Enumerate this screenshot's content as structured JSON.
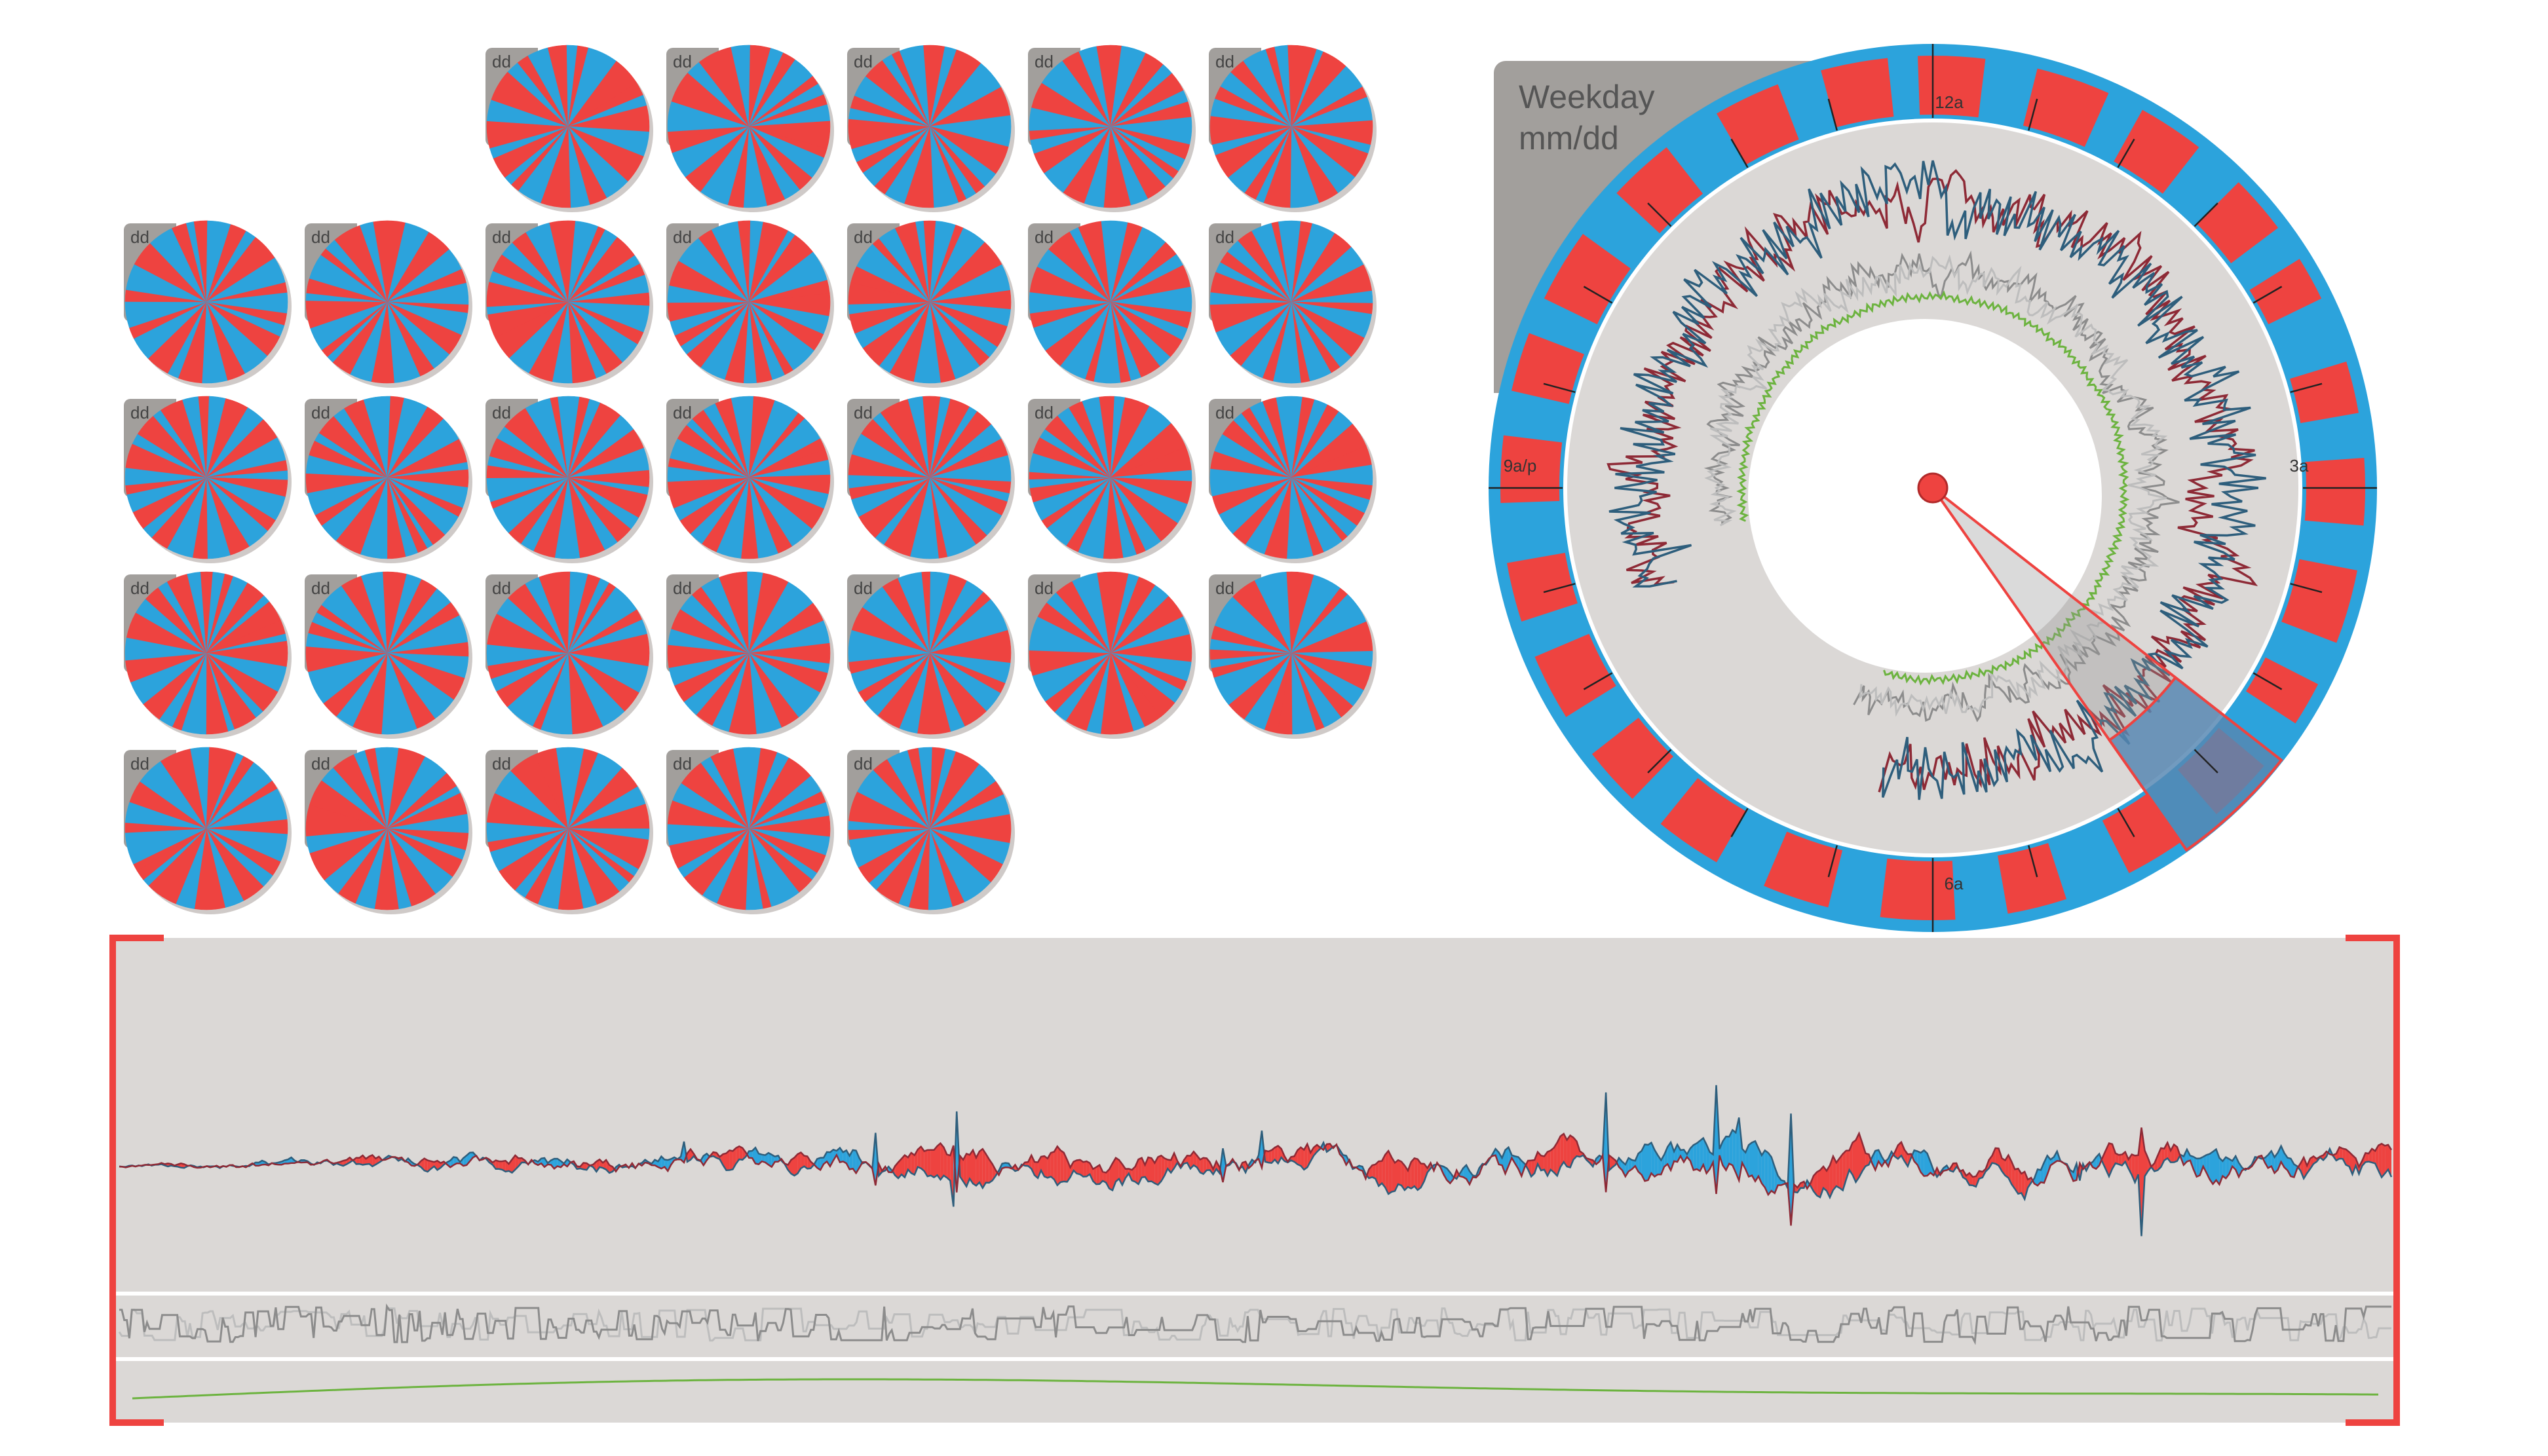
{
  "colors": {
    "red": "#EE4340",
    "blue": "#2CA3DC",
    "tab": "#A29F9C",
    "panel": "#DBD8D6",
    "grey_line": "#8C8C8C",
    "light_grey_line": "#BDBDBD",
    "green": "#6CB33F",
    "dark_red_line": "#8E2A36",
    "dark_blue_line": "#2E5E7C",
    "selection": "#4F86B5"
  },
  "calendar": {
    "day_label": "dd",
    "weeks": [
      [
        0,
        0,
        1,
        1,
        1,
        1,
        1
      ],
      [
        1,
        1,
        1,
        1,
        1,
        1,
        1
      ],
      [
        1,
        1,
        1,
        1,
        1,
        1,
        1
      ],
      [
        1,
        1,
        1,
        1,
        1,
        1,
        1
      ],
      [
        1,
        1,
        1,
        1,
        1,
        0,
        0
      ]
    ]
  },
  "clock": {
    "title_line1": "Weekday",
    "title_line2": "mm/dd",
    "labels": {
      "top": "12a",
      "right": "3a",
      "bottom": "6a",
      "left": "9a/p"
    }
  },
  "chart_data": {
    "type": "area",
    "grid": false,
    "legend": "none",
    "title": "",
    "xlabel": "",
    "ylabel": ""
  }
}
